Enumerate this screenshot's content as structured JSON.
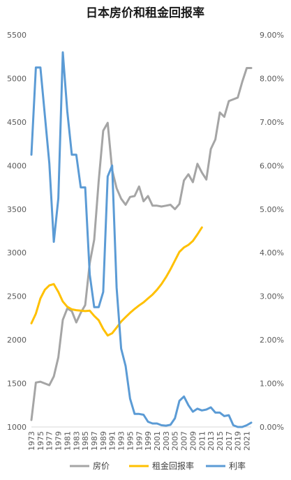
{
  "chart_data": {
    "type": "line",
    "title": "日本房价和租金回报率",
    "x": [
      1973,
      1974,
      1975,
      1976,
      1977,
      1978,
      1979,
      1980,
      1981,
      1982,
      1983,
      1984,
      1985,
      1986,
      1987,
      1988,
      1989,
      1990,
      1991,
      1992,
      1993,
      1994,
      1995,
      1996,
      1997,
      1998,
      1999,
      2000,
      2001,
      2002,
      2003,
      2004,
      2005,
      2006,
      2007,
      2008,
      2009,
      2010,
      2011,
      2012,
      2013,
      2014,
      2015,
      2016,
      2017,
      2018,
      2019,
      2020,
      2021,
      2022
    ],
    "x_tick_labels": [
      "1973",
      "1975",
      "1977",
      "1979",
      "1981",
      "1983",
      "1985",
      "1987",
      "1989",
      "1991",
      "1993",
      "1995",
      "1997",
      "1999",
      "2001",
      "2003",
      "2005",
      "2007",
      "2009",
      "2011",
      "2013",
      "2015",
      "2017",
      "2019",
      "2021"
    ],
    "y_left": {
      "min": 1000,
      "max": 5500,
      "ticks": [
        "1000",
        "1500",
        "2000",
        "2500",
        "3000",
        "3500",
        "4000",
        "4500",
        "5000",
        "5500"
      ]
    },
    "y_right": {
      "min": 0,
      "max": 9,
      "ticks": [
        "0.00%",
        "1.00%",
        "2.00%",
        "3.00%",
        "4.00%",
        "5.00%",
        "6.00%",
        "7.00%",
        "8.00%",
        "9.00%"
      ]
    },
    "grid": false,
    "legend_position": "bottom",
    "series": [
      {
        "name": "房价",
        "axis": "left",
        "color": "#a5a5a5",
        "values": [
          1080,
          1510,
          1520,
          1500,
          1480,
          1580,
          1800,
          2230,
          2360,
          2330,
          2200,
          2310,
          2400,
          2880,
          3150,
          3820,
          4400,
          4490,
          3950,
          3740,
          3620,
          3550,
          3640,
          3650,
          3760,
          3590,
          3650,
          3540,
          3540,
          3530,
          3540,
          3550,
          3500,
          3560,
          3830,
          3900,
          3810,
          4020,
          3920,
          3840,
          4190,
          4300,
          4610,
          4560,
          4740,
          4760,
          4780,
          4960,
          5120,
          5120
        ]
      },
      {
        "name": "租金回报率",
        "axis": "right",
        "color": "#ffc000",
        "values": [
          2.38,
          2.6,
          2.95,
          3.15,
          3.25,
          3.28,
          3.1,
          2.88,
          2.76,
          2.7,
          2.68,
          2.67,
          2.66,
          2.67,
          2.55,
          2.45,
          2.25,
          2.1,
          2.15,
          2.28,
          2.42,
          2.52,
          2.62,
          2.71,
          2.79,
          2.86,
          2.95,
          3.04,
          3.15,
          3.28,
          3.44,
          3.62,
          3.82,
          4.02,
          4.12,
          4.18,
          4.27,
          4.42,
          4.58,
          null,
          null,
          null,
          null,
          null,
          null,
          null,
          null,
          null,
          null,
          null
        ]
      },
      {
        "name": "利率",
        "axis": "right",
        "color": "#5b9bd5",
        "values": [
          6.25,
          8.25,
          8.25,
          7.15,
          6.05,
          4.25,
          5.25,
          8.6,
          7.25,
          6.25,
          6.25,
          5.5,
          5.5,
          3.5,
          2.75,
          2.75,
          3.1,
          5.75,
          6.0,
          3.2,
          1.8,
          1.4,
          0.65,
          0.3,
          0.3,
          0.28,
          0.12,
          0.08,
          0.08,
          0.04,
          0.03,
          0.05,
          0.2,
          0.6,
          0.7,
          0.5,
          0.35,
          0.42,
          0.38,
          0.4,
          0.45,
          0.33,
          0.33,
          0.25,
          0.27,
          0.04,
          0.0,
          0.0,
          0.04,
          0.1
        ]
      }
    ]
  }
}
